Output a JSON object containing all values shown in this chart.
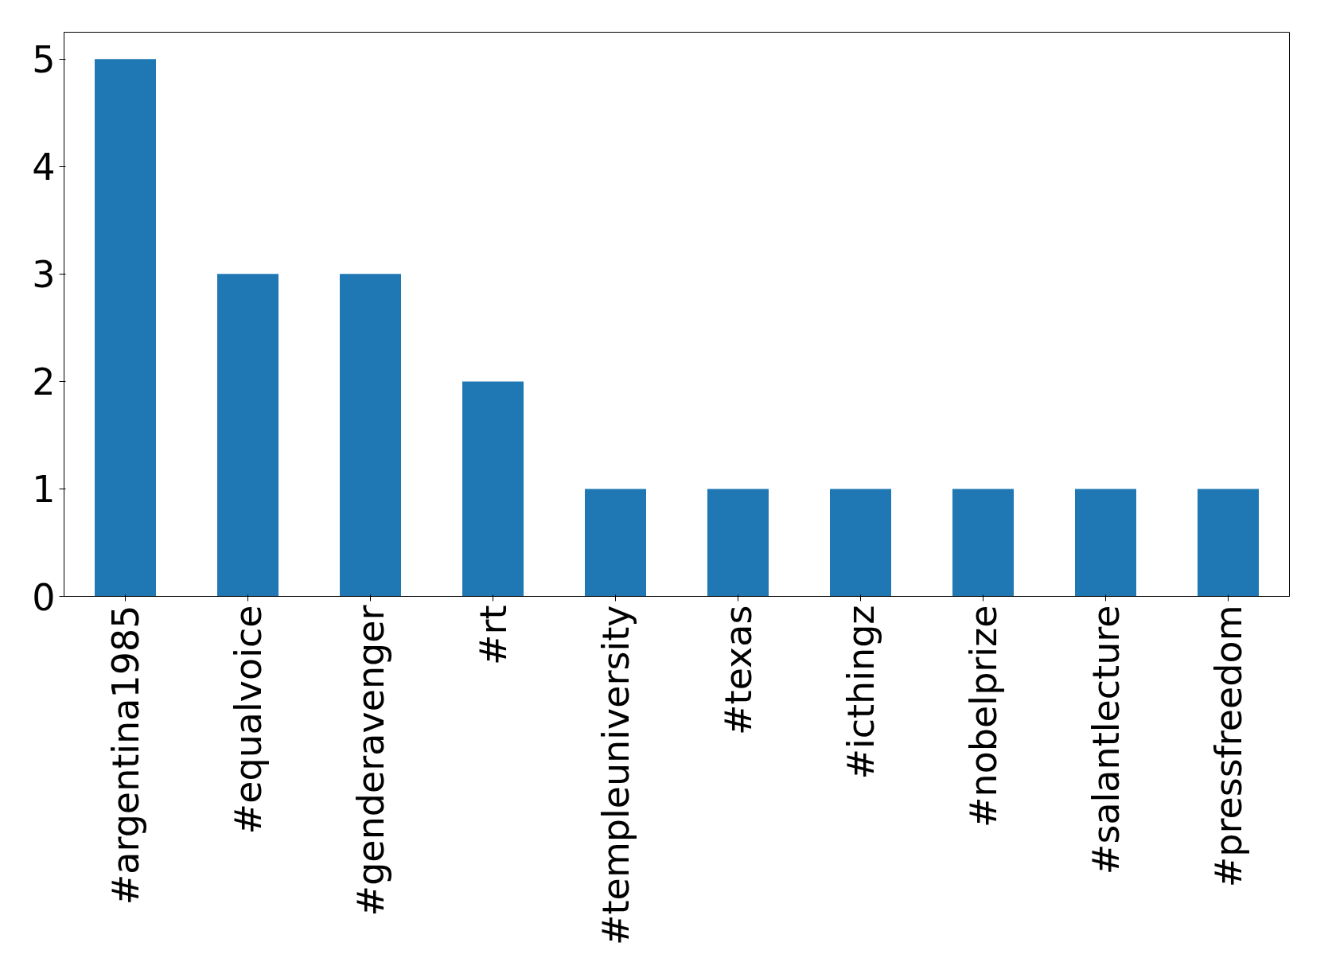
{
  "chart_data": {
    "type": "bar",
    "categories": [
      "#argentina1985",
      "#equalvoice",
      "#genderavenger",
      "#rt",
      "#templeuniversity",
      "#texas",
      "#icthingz",
      "#nobelprize",
      "#salantlecture",
      "#pressfreedom"
    ],
    "values": [
      5,
      3,
      3,
      2,
      1,
      1,
      1,
      1,
      1,
      1
    ],
    "color": "#1f77b4",
    "ylim": [
      0,
      5.25
    ],
    "yticks": [
      0,
      1,
      2,
      3,
      4,
      5
    ],
    "grid": false
  }
}
